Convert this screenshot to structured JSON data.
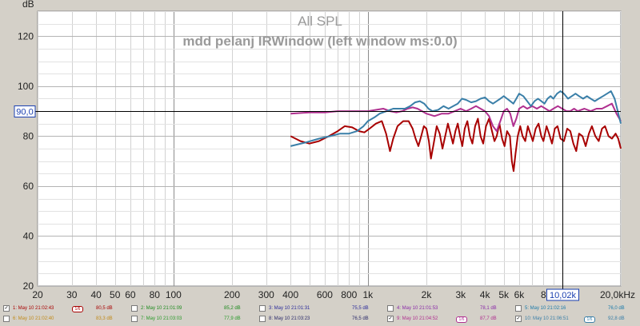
{
  "chart_data": {
    "type": "line",
    "title": "All SPL",
    "subtitle": "mdd pelanj IRWindow (left window ms:0.0)",
    "ylabel": "dB",
    "xscale": "log",
    "xlim": [
      20,
      20000
    ],
    "ylim": [
      20,
      130
    ],
    "grid": true,
    "x_tick_labels": [
      {
        "v": 20,
        "t": "20"
      },
      {
        "v": 30,
        "t": "30"
      },
      {
        "v": 40,
        "t": "40"
      },
      {
        "v": 50,
        "t": "50"
      },
      {
        "v": 60,
        "t": "60"
      },
      {
        "v": 80,
        "t": "80"
      },
      {
        "v": 100,
        "t": "100"
      },
      {
        "v": 200,
        "t": "200"
      },
      {
        "v": 300,
        "t": "300"
      },
      {
        "v": 400,
        "t": "400"
      },
      {
        "v": 600,
        "t": "600"
      },
      {
        "v": 800,
        "t": "800"
      },
      {
        "v": 1000,
        "t": "1k"
      },
      {
        "v": 2000,
        "t": "2k"
      },
      {
        "v": 3000,
        "t": "3k"
      },
      {
        "v": 4000,
        "t": "4k"
      },
      {
        "v": 5000,
        "t": "5k"
      },
      {
        "v": 6000,
        "t": "6k"
      },
      {
        "v": 8000,
        "t": "8"
      },
      {
        "v": 20000,
        "t": "20,0kHz"
      }
    ],
    "y_tick_labels": [
      20,
      40,
      60,
      80,
      100,
      120
    ],
    "cursor": {
      "x": 10020,
      "y": 90.0,
      "x_label": "10,02k",
      "y_label": "90,0"
    },
    "series": [
      {
        "name": "1: May 10 21:02:43",
        "color": "#a80000",
        "points": [
          [
            400,
            80
          ],
          [
            450,
            78
          ],
          [
            500,
            77
          ],
          [
            560,
            78
          ],
          [
            630,
            80
          ],
          [
            700,
            82
          ],
          [
            760,
            84
          ],
          [
            830,
            83.5
          ],
          [
            900,
            82
          ],
          [
            960,
            81.5
          ],
          [
            1020,
            83
          ],
          [
            1100,
            85
          ],
          [
            1180,
            86
          ],
          [
            1240,
            81
          ],
          [
            1300,
            74
          ],
          [
            1350,
            79
          ],
          [
            1420,
            84
          ],
          [
            1520,
            86
          ],
          [
            1620,
            86
          ],
          [
            1700,
            83
          ],
          [
            1760,
            79
          ],
          [
            1820,
            76
          ],
          [
            1880,
            80
          ],
          [
            1940,
            84
          ],
          [
            2000,
            83
          ],
          [
            2060,
            78
          ],
          [
            2110,
            71
          ],
          [
            2180,
            77
          ],
          [
            2260,
            84
          ],
          [
            2340,
            81
          ],
          [
            2420,
            75
          ],
          [
            2500,
            80
          ],
          [
            2580,
            85
          ],
          [
            2660,
            81
          ],
          [
            2740,
            77
          ],
          [
            2820,
            82
          ],
          [
            2900,
            85
          ],
          [
            2980,
            80
          ],
          [
            3060,
            76
          ],
          [
            3150,
            83
          ],
          [
            3250,
            86
          ],
          [
            3350,
            80
          ],
          [
            3450,
            77
          ],
          [
            3560,
            84
          ],
          [
            3680,
            87
          ],
          [
            3800,
            80
          ],
          [
            3920,
            77
          ],
          [
            4050,
            84
          ],
          [
            4200,
            87
          ],
          [
            4350,
            82
          ],
          [
            4480,
            78
          ],
          [
            4600,
            80
          ],
          [
            4750,
            85
          ],
          [
            4900,
            79
          ],
          [
            5050,
            76
          ],
          [
            5200,
            82
          ],
          [
            5380,
            80
          ],
          [
            5500,
            70
          ],
          [
            5620,
            66
          ],
          [
            5750,
            73
          ],
          [
            5900,
            80
          ],
          [
            6080,
            84
          ],
          [
            6250,
            80
          ],
          [
            6450,
            78
          ],
          [
            6650,
            84
          ],
          [
            6850,
            81
          ],
          [
            7050,
            78
          ],
          [
            7300,
            83
          ],
          [
            7550,
            85
          ],
          [
            7800,
            80
          ],
          [
            8000,
            78
          ],
          [
            8300,
            84
          ],
          [
            8550,
            81
          ],
          [
            8850,
            77
          ],
          [
            9150,
            83
          ],
          [
            9450,
            84
          ],
          [
            9800,
            79
          ],
          [
            10200,
            78
          ],
          [
            10600,
            83
          ],
          [
            11000,
            82
          ],
          [
            11400,
            77
          ],
          [
            11800,
            74
          ],
          [
            12200,
            81
          ],
          [
            12700,
            80
          ],
          [
            13200,
            76
          ],
          [
            13700,
            81
          ],
          [
            14200,
            84
          ],
          [
            14800,
            80
          ],
          [
            15400,
            78
          ],
          [
            16000,
            83
          ],
          [
            16600,
            84
          ],
          [
            17300,
            80
          ],
          [
            18000,
            79
          ],
          [
            18800,
            81
          ],
          [
            19400,
            79
          ],
          [
            20000,
            75
          ]
        ]
      },
      {
        "name": "9: May 10 21:04:52",
        "color": "#b03090",
        "points": [
          [
            400,
            89
          ],
          [
            500,
            89.5
          ],
          [
            600,
            89.5
          ],
          [
            700,
            90
          ],
          [
            800,
            90
          ],
          [
            900,
            90
          ],
          [
            1000,
            90
          ],
          [
            1100,
            90.5
          ],
          [
            1200,
            91
          ],
          [
            1300,
            90
          ],
          [
            1400,
            89.5
          ],
          [
            1500,
            90
          ],
          [
            1600,
            91
          ],
          [
            1700,
            91.5
          ],
          [
            1800,
            91
          ],
          [
            1900,
            90
          ],
          [
            2000,
            89
          ],
          [
            2200,
            88
          ],
          [
            2400,
            89
          ],
          [
            2600,
            89
          ],
          [
            2800,
            90
          ],
          [
            3000,
            91
          ],
          [
            3200,
            90
          ],
          [
            3400,
            91
          ],
          [
            3600,
            92
          ],
          [
            3800,
            91
          ],
          [
            4000,
            90
          ],
          [
            4200,
            88
          ],
          [
            4400,
            84
          ],
          [
            4600,
            82
          ],
          [
            4800,
            86
          ],
          [
            5000,
            90
          ],
          [
            5200,
            91
          ],
          [
            5400,
            89
          ],
          [
            5600,
            84
          ],
          [
            5800,
            87
          ],
          [
            6000,
            91
          ],
          [
            6300,
            92
          ],
          [
            6600,
            91
          ],
          [
            7000,
            92
          ],
          [
            7400,
            91
          ],
          [
            7800,
            92
          ],
          [
            8200,
            91
          ],
          [
            8600,
            90
          ],
          [
            9000,
            91
          ],
          [
            9500,
            92
          ],
          [
            10000,
            91
          ],
          [
            10500,
            90
          ],
          [
            11000,
            90
          ],
          [
            11500,
            91
          ],
          [
            12000,
            90
          ],
          [
            13000,
            91
          ],
          [
            14000,
            90
          ],
          [
            15000,
            91
          ],
          [
            16000,
            91
          ],
          [
            17000,
            92
          ],
          [
            18000,
            93
          ],
          [
            19000,
            89
          ],
          [
            20000,
            86
          ]
        ]
      },
      {
        "name": "10: May 10 21:06:51",
        "color": "#3a7fa8",
        "points": [
          [
            400,
            76
          ],
          [
            480,
            77.5
          ],
          [
            560,
            79
          ],
          [
            640,
            80
          ],
          [
            720,
            81
          ],
          [
            800,
            81
          ],
          [
            880,
            82
          ],
          [
            950,
            84
          ],
          [
            1000,
            86
          ],
          [
            1080,
            87.5
          ],
          [
            1150,
            89
          ],
          [
            1250,
            90
          ],
          [
            1350,
            91
          ],
          [
            1450,
            91
          ],
          [
            1550,
            91
          ],
          [
            1650,
            92
          ],
          [
            1750,
            93.5
          ],
          [
            1850,
            94
          ],
          [
            1950,
            93
          ],
          [
            2050,
            91
          ],
          [
            2150,
            90
          ],
          [
            2300,
            90.5
          ],
          [
            2450,
            92
          ],
          [
            2600,
            91
          ],
          [
            2750,
            92
          ],
          [
            2900,
            93
          ],
          [
            3050,
            95
          ],
          [
            3200,
            94.5
          ],
          [
            3400,
            93.5
          ],
          [
            3600,
            94
          ],
          [
            3800,
            95
          ],
          [
            4000,
            95.5
          ],
          [
            4200,
            94
          ],
          [
            4400,
            93
          ],
          [
            4600,
            94
          ],
          [
            4800,
            95
          ],
          [
            5000,
            96
          ],
          [
            5200,
            95
          ],
          [
            5400,
            94
          ],
          [
            5600,
            93
          ],
          [
            5800,
            95
          ],
          [
            6000,
            97
          ],
          [
            6300,
            96
          ],
          [
            6600,
            94
          ],
          [
            6900,
            92
          ],
          [
            7200,
            94
          ],
          [
            7500,
            95
          ],
          [
            7800,
            94
          ],
          [
            8100,
            93
          ],
          [
            8400,
            95
          ],
          [
            8700,
            96
          ],
          [
            9000,
            95
          ],
          [
            9400,
            97
          ],
          [
            9800,
            98
          ],
          [
            10200,
            97
          ],
          [
            10700,
            95
          ],
          [
            11200,
            96
          ],
          [
            11700,
            97
          ],
          [
            12200,
            96
          ],
          [
            12800,
            95
          ],
          [
            13400,
            96
          ],
          [
            14000,
            95
          ],
          [
            14700,
            94
          ],
          [
            15400,
            95
          ],
          [
            16200,
            96
          ],
          [
            17000,
            97
          ],
          [
            17800,
            98
          ],
          [
            18600,
            95
          ],
          [
            19300,
            90
          ],
          [
            20000,
            85
          ]
        ]
      }
    ]
  },
  "legend": [
    {
      "label": "1: May 10 21:02:43",
      "checked": true,
      "color": "#a80000",
      "value": "80,5 dB",
      "sw": "1/6"
    },
    {
      "label": "2: May 10 21:01:09",
      "checked": false,
      "color": "#1d8a1d",
      "value": "85,2 dB",
      "sw": ""
    },
    {
      "label": "3: May 10 21:01:31",
      "checked": false,
      "color": "#2a2a9a",
      "value": "75,5 dB",
      "sw": ""
    },
    {
      "label": "4: May 10 21:01:53",
      "checked": false,
      "color": "#8a2aa8",
      "value": "78,1 dB",
      "sw": ""
    },
    {
      "label": "5: May 10 21:02:16",
      "checked": false,
      "color": "#1a7aaa",
      "value": "76,0 dB",
      "sw": ""
    },
    {
      "label": "6: May 10 21:02:40",
      "checked": false,
      "color": "#c08a1a",
      "value": "83,3 dB",
      "sw": ""
    },
    {
      "label": "7: May 10 21:03:03",
      "checked": false,
      "color": "#2a9a2a",
      "value": "77,9 dB",
      "sw": ""
    },
    {
      "label": "8: May 10 21:03:23",
      "checked": false,
      "color": "#2a2a6a",
      "value": "76,5 dB",
      "sw": ""
    },
    {
      "label": "9: May 10 21:04:52",
      "checked": true,
      "color": "#b03090",
      "value": "87,7 dB",
      "sw": "1/6"
    },
    {
      "label": "10: May 10 21:06:51",
      "checked": true,
      "color": "#3a7fa8",
      "value": "92,8 dB",
      "sw": "1/6"
    }
  ]
}
